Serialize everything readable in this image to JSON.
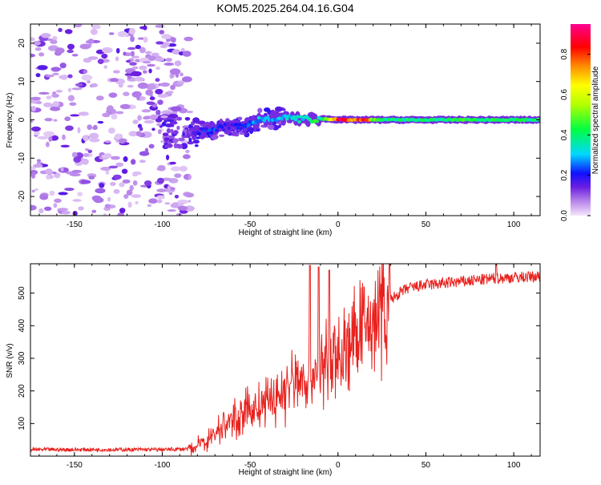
{
  "title": "KOM5.2025.264.04.16.G04",
  "chart_data": [
    {
      "type": "heatmap",
      "name": "spectrogram",
      "xlabel": "Height of straight line (km)",
      "ylabel": "Frequency (Hz)",
      "xlim": [
        -175,
        115
      ],
      "ylim": [
        -25,
        25
      ],
      "xticks": [
        -150,
        -100,
        -50,
        0,
        50,
        100
      ],
      "yticks": [
        -20,
        -10,
        0,
        10,
        20
      ],
      "colorbar": {
        "label": "Normalized spectral amplitude",
        "range": [
          0,
          0.95
        ],
        "ticks": [
          0.0,
          0.2,
          0.4,
          0.6,
          0.8
        ],
        "tick_labels": [
          "0.0",
          "0.2",
          "0.4",
          "0.6",
          "0.8"
        ],
        "colormap": "rainbow (violet-blue-cyan-green-yellow-red-magenta)"
      },
      "ridge": {
        "description": "Frequency ridge of the spectrogram (Hz vs km) with normalized amplitude",
        "x": [
          -85,
          -80,
          -75,
          -70,
          -65,
          -60,
          -55,
          -50,
          -45,
          -40,
          -35,
          -30,
          -25,
          -20,
          -15,
          -10,
          -5,
          0,
          5,
          10,
          15,
          20,
          30,
          40,
          50,
          60,
          70,
          80,
          90,
          100,
          110,
          115
        ],
        "freq": [
          -3.5,
          -3.0,
          -3.0,
          -2.5,
          -2.0,
          -1.5,
          -2.0,
          -1.0,
          0.0,
          0.5,
          0.5,
          0.5,
          0.3,
          0.0,
          0.2,
          0.3,
          0.2,
          0.1,
          0.0,
          0.0,
          0.0,
          0.0,
          0.0,
          0.0,
          0.0,
          0.0,
          0.0,
          0.0,
          0.0,
          0.0,
          0.0,
          0.0
        ],
        "amplitude": [
          0.12,
          0.2,
          0.22,
          0.24,
          0.2,
          0.18,
          0.22,
          0.26,
          0.3,
          0.28,
          0.3,
          0.32,
          0.32,
          0.35,
          0.45,
          0.4,
          0.55,
          0.9,
          0.92,
          0.7,
          0.95,
          0.5,
          0.4,
          0.42,
          0.4,
          0.42,
          0.45,
          0.45,
          0.45,
          0.42,
          0.4,
          0.4
        ]
      },
      "noise_region_km": [
        -175,
        -90
      ]
    },
    {
      "type": "line",
      "name": "snr",
      "xlabel": "Height of straight line (km)",
      "ylabel": "SNR (v/v)",
      "xlim": [
        -175,
        115
      ],
      "ylim": [
        0,
        590
      ],
      "xticks": [
        -150,
        -100,
        -50,
        0,
        50,
        100
      ],
      "yticks": [
        100,
        200,
        300,
        400,
        500
      ],
      "color": "#e8221e",
      "envelope": {
        "description": "Approximate mean SNR trend (noisy trace plotted around it)",
        "x": [
          -175,
          -150,
          -125,
          -100,
          -85,
          -80,
          -75,
          -70,
          -65,
          -60,
          -55,
          -50,
          -45,
          -40,
          -35,
          -30,
          -25,
          -20,
          -15,
          -10,
          -5,
          0,
          5,
          10,
          15,
          20,
          25,
          30,
          35,
          40,
          50,
          60,
          70,
          80,
          90,
          100,
          110,
          115
        ],
        "y": [
          20,
          20,
          20,
          20,
          22,
          30,
          50,
          70,
          95,
          110,
          130,
          140,
          150,
          160,
          180,
          200,
          230,
          240,
          250,
          270,
          290,
          300,
          330,
          360,
          390,
          420,
          450,
          480,
          500,
          515,
          525,
          530,
          535,
          540,
          545,
          548,
          550,
          552
        ]
      },
      "peaks": [
        {
          "x": -16,
          "y": 585
        },
        {
          "x": -11,
          "y": 580
        },
        {
          "x": -5,
          "y": 570
        },
        {
          "x": 90,
          "y": 590
        }
      ]
    }
  ]
}
